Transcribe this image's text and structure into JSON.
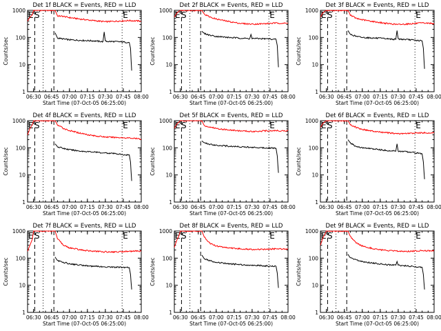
{
  "colors": {
    "events": "#000000",
    "lld": "#ff0000",
    "background": "#ffffff",
    "axes": "#000000"
  },
  "common": {
    "xlabel": "Start Time (07-Oct-05 06:25:00)",
    "ylabel": "Counts/sec",
    "x_tick_labels": [
      "06:30",
      "06:45",
      "07:00",
      "07:15",
      "07:30",
      "07:45",
      "08:00"
    ],
    "y_tick_labels": [
      "1",
      "10",
      "100",
      "1000"
    ],
    "marker_labels": [
      "E",
      "S",
      "E"
    ]
  },
  "chart_data": [
    {
      "type": "line",
      "title": "Det 1f BLACK = Events, RED = LLD",
      "xlabel": "Start Time (07-Oct-05 06:25:00)",
      "ylabel": "Counts/sec",
      "xlim": [
        "06:25",
        "08:00"
      ],
      "ylim": [
        1,
        1000
      ],
      "y_scale": "log",
      "x_ticks": [
        "06:30",
        "06:45",
        "07:00",
        "07:15",
        "07:30",
        "07:45",
        "08:00"
      ],
      "y_ticks": [
        "1",
        "10",
        "100",
        "1000"
      ],
      "vlines": {
        "dashed": [
          "06:31",
          "06:47"
        ],
        "dotted": [
          "06:38",
          "07:44"
        ]
      },
      "series": [
        {
          "color": "#ff0000",
          "x": [
            "06:25",
            "06:27",
            "06:29",
            "06:30",
            "06:31",
            "06:48",
            "06:50",
            "06:55",
            "07:00",
            "07:10",
            "07:20",
            "07:30",
            "07:40",
            "07:50",
            "08:00"
          ],
          "y": [
            400,
            560,
            680,
            1000,
            1000,
            1000,
            620,
            600,
            540,
            470,
            420,
            380,
            400,
            420,
            400
          ]
        },
        {
          "color": "#000000",
          "x": [
            "06:48",
            "06:50",
            "06:55",
            "07:00",
            "07:10",
            "07:20",
            "07:28",
            "07:29",
            "07:30",
            "07:40",
            "07:45",
            "07:50",
            "07:51",
            "07:52"
          ],
          "y": [
            150,
            95,
            88,
            82,
            78,
            75,
            70,
            160,
            72,
            70,
            68,
            65,
            40,
            6
          ]
        }
      ]
    },
    {
      "type": "line",
      "title": "Det 2f BLACK = Events, RED = LLD",
      "xlabel": "Start Time (07-Oct-05 06:25:00)",
      "ylabel": "Counts/sec",
      "xlim": [
        "06:25",
        "08:00"
      ],
      "ylim": [
        1,
        1000
      ],
      "y_scale": "log",
      "x_ticks": [
        "06:30",
        "06:45",
        "07:00",
        "07:15",
        "07:30",
        "07:45",
        "08:00"
      ],
      "y_ticks": [
        "1",
        "10",
        "100",
        "1000"
      ],
      "vlines": {
        "dashed": [
          "06:31",
          "06:47"
        ],
        "dotted": [
          "06:38",
          "07:44"
        ]
      },
      "series": [
        {
          "color": "#ff0000",
          "x": [
            "06:25",
            "06:27",
            "06:29",
            "06:30",
            "06:31",
            "06:48",
            "06:50",
            "06:55",
            "07:00",
            "07:10",
            "07:20",
            "07:30",
            "07:40",
            "07:50",
            "08:00"
          ],
          "y": [
            560,
            780,
            940,
            1000,
            1000,
            1000,
            720,
            560,
            480,
            390,
            330,
            310,
            320,
            340,
            330
          ]
        },
        {
          "color": "#000000",
          "x": [
            "06:48",
            "06:50",
            "06:55",
            "07:00",
            "07:10",
            "07:20",
            "07:28",
            "07:29",
            "07:30",
            "07:40",
            "07:45",
            "07:50",
            "07:51",
            "07:52"
          ],
          "y": [
            170,
            140,
            120,
            110,
            100,
            95,
            90,
            130,
            92,
            90,
            88,
            85,
            50,
            8
          ]
        }
      ]
    },
    {
      "type": "line",
      "title": "Det 3f BLACK = Events, RED = LLD",
      "xlabel": "Start Time (07-Oct-05 06:25:00)",
      "ylabel": "Counts/sec",
      "xlim": [
        "06:25",
        "08:00"
      ],
      "ylim": [
        1,
        1000
      ],
      "y_scale": "log",
      "x_ticks": [
        "06:30",
        "06:45",
        "07:00",
        "07:15",
        "07:30",
        "07:45",
        "08:00"
      ],
      "y_ticks": [
        "1",
        "10",
        "100",
        "1000"
      ],
      "vlines": {
        "dashed": [
          "06:31",
          "06:47"
        ],
        "dotted": [
          "06:38",
          "07:44"
        ]
      },
      "series": [
        {
          "color": "#ff0000",
          "x": [
            "06:25",
            "06:27",
            "06:29",
            "06:30",
            "06:31",
            "06:48",
            "06:50",
            "06:55",
            "07:00",
            "07:10",
            "07:20",
            "07:30",
            "07:40",
            "07:50",
            "08:00"
          ],
          "y": [
            560,
            800,
            950,
            1000,
            1000,
            1000,
            680,
            500,
            450,
            380,
            330,
            300,
            320,
            340,
            330
          ]
        },
        {
          "color": "#000000",
          "x": [
            "06:48",
            "06:50",
            "06:55",
            "07:00",
            "07:10",
            "07:20",
            "07:28",
            "07:29",
            "07:30",
            "07:40",
            "07:45",
            "07:50",
            "07:51",
            "07:52"
          ],
          "y": [
            180,
            130,
            110,
            100,
            95,
            90,
            85,
            180,
            88,
            82,
            78,
            75,
            40,
            7
          ]
        }
      ]
    },
    {
      "type": "line",
      "title": "Det 4f BLACK = Events, RED = LLD",
      "xlabel": "Start Time (07-Oct-05 06:25:00)",
      "ylabel": "Counts/sec",
      "xlim": [
        "06:25",
        "08:00"
      ],
      "ylim": [
        1,
        1000
      ],
      "y_scale": "log",
      "x_ticks": [
        "06:30",
        "06:45",
        "07:00",
        "07:15",
        "07:30",
        "07:45",
        "08:00"
      ],
      "y_ticks": [
        "1",
        "10",
        "100",
        "1000"
      ],
      "vlines": {
        "dashed": [
          "06:31",
          "06:47"
        ],
        "dotted": [
          "06:38",
          "07:44"
        ]
      },
      "series": [
        {
          "color": "#ff0000",
          "x": [
            "06:25",
            "06:27",
            "06:29",
            "06:30",
            "06:31",
            "06:48",
            "06:50",
            "06:55",
            "07:00",
            "07:10",
            "07:20",
            "07:30",
            "07:40",
            "07:50",
            "08:00"
          ],
          "y": [
            300,
            520,
            700,
            1000,
            1000,
            1000,
            700,
            520,
            430,
            340,
            280,
            250,
            240,
            230,
            210
          ]
        },
        {
          "color": "#000000",
          "x": [
            "06:48",
            "06:50",
            "06:55",
            "07:00",
            "07:10",
            "07:20",
            "07:28",
            "07:29",
            "07:30",
            "07:40",
            "07:45",
            "07:50",
            "07:51",
            "07:52"
          ],
          "y": [
            140,
            110,
            95,
            85,
            75,
            70,
            65,
            65,
            65,
            60,
            55,
            55,
            30,
            6
          ]
        }
      ]
    },
    {
      "type": "line",
      "title": "Det 5f BLACK = Events, RED = LLD",
      "xlabel": "Start Time (07-Oct-05 06:25:00)",
      "ylabel": "Counts/sec",
      "xlim": [
        "06:25",
        "08:00"
      ],
      "ylim": [
        1,
        1000
      ],
      "y_scale": "log",
      "x_ticks": [
        "06:30",
        "06:45",
        "07:00",
        "07:15",
        "07:30",
        "07:45",
        "08:00"
      ],
      "y_ticks": [
        "1",
        "10",
        "100",
        "1000"
      ],
      "vlines": {
        "dashed": [
          "06:31",
          "06:47"
        ],
        "dotted": [
          "06:38",
          "07:44"
        ]
      },
      "series": [
        {
          "color": "#ff0000",
          "x": [
            "06:25",
            "06:27",
            "06:29",
            "06:30",
            "06:31",
            "06:48",
            "06:50",
            "06:55",
            "07:00",
            "07:10",
            "07:20",
            "07:30",
            "07:40",
            "07:50",
            "08:00"
          ],
          "y": [
            520,
            740,
            900,
            1000,
            1000,
            1000,
            650,
            580,
            520,
            460,
            420,
            400,
            420,
            430,
            420
          ]
        },
        {
          "color": "#000000",
          "x": [
            "06:48",
            "06:50",
            "06:55",
            "07:00",
            "07:10",
            "07:20",
            "07:28",
            "07:29",
            "07:30",
            "07:40",
            "07:45",
            "07:50",
            "07:51",
            "07:52"
          ],
          "y": [
            180,
            150,
            135,
            125,
            115,
            110,
            105,
            105,
            105,
            100,
            100,
            95,
            50,
            12
          ]
        }
      ]
    },
    {
      "type": "line",
      "title": "Det 6f BLACK = Events, RED = LLD",
      "xlabel": "Start Time (07-Oct-05 06:25:00)",
      "ylabel": "Counts/sec",
      "xlim": [
        "06:25",
        "08:00"
      ],
      "ylim": [
        1,
        1000
      ],
      "y_scale": "log",
      "x_ticks": [
        "06:30",
        "06:45",
        "07:00",
        "07:15",
        "07:30",
        "07:45",
        "08:00"
      ],
      "y_ticks": [
        "1",
        "10",
        "100",
        "1000"
      ],
      "vlines": {
        "dashed": [
          "06:31",
          "06:47"
        ],
        "dotted": [
          "06:38",
          "07:44"
        ]
      },
      "series": [
        {
          "color": "#ff0000",
          "x": [
            "06:25",
            "06:27",
            "06:29",
            "06:30",
            "06:31",
            "06:48",
            "06:50",
            "06:55",
            "07:00",
            "07:10",
            "07:20",
            "07:30",
            "07:40",
            "07:50",
            "08:00"
          ],
          "y": [
            560,
            780,
            940,
            1000,
            1000,
            1000,
            720,
            560,
            480,
            400,
            360,
            330,
            340,
            360,
            350
          ]
        },
        {
          "color": "#000000",
          "x": [
            "06:48",
            "06:50",
            "06:55",
            "07:00",
            "07:10",
            "07:20",
            "07:28",
            "07:29",
            "07:30",
            "07:40",
            "07:45",
            "07:50",
            "07:51",
            "07:52"
          ],
          "y": [
            200,
            150,
            110,
            100,
            90,
            80,
            75,
            140,
            75,
            70,
            65,
            60,
            30,
            7
          ]
        }
      ]
    },
    {
      "type": "line",
      "title": "Det 7f BLACK = Events, RED = LLD",
      "xlabel": "Start Time (07-Oct-05 06:25:00)",
      "ylabel": "Counts/sec",
      "xlim": [
        "06:25",
        "08:00"
      ],
      "ylim": [
        1,
        1000
      ],
      "y_scale": "log",
      "x_ticks": [
        "06:30",
        "06:45",
        "07:00",
        "07:15",
        "07:30",
        "07:45",
        "08:00"
      ],
      "y_ticks": [
        "1",
        "10",
        "100",
        "1000"
      ],
      "vlines": {
        "dashed": [
          "06:31",
          "06:47"
        ],
        "dotted": [
          "06:38",
          "07:44"
        ]
      },
      "series": [
        {
          "color": "#ff0000",
          "x": [
            "06:25",
            "06:27",
            "06:29",
            "06:30",
            "06:31",
            "06:48",
            "06:50",
            "06:55",
            "07:00",
            "07:10",
            "07:20",
            "07:30",
            "07:40",
            "07:50",
            "08:00"
          ],
          "y": [
            180,
            300,
            500,
            1000,
            1000,
            1000,
            520,
            300,
            240,
            200,
            180,
            170,
            170,
            180,
            180
          ]
        },
        {
          "color": "#000000",
          "x": [
            "06:48",
            "06:50",
            "06:55",
            "07:00",
            "07:10",
            "07:20",
            "07:28",
            "07:29",
            "07:30",
            "07:40",
            "07:45",
            "07:50",
            "07:51",
            "07:52"
          ],
          "y": [
            110,
            80,
            70,
            62,
            55,
            50,
            48,
            48,
            48,
            46,
            45,
            45,
            25,
            7
          ]
        }
      ]
    },
    {
      "type": "line",
      "title": "Det 8f BLACK = Events, RED = LLD",
      "xlabel": "Start Time (07-Oct-05 06:25:00)",
      "ylabel": "Counts/sec",
      "xlim": [
        "06:25",
        "08:00"
      ],
      "ylim": [
        1,
        1000
      ],
      "y_scale": "log",
      "x_ticks": [
        "06:30",
        "06:45",
        "07:00",
        "07:15",
        "07:30",
        "07:45",
        "08:00"
      ],
      "y_ticks": [
        "1",
        "10",
        "100",
        "1000"
      ],
      "vlines": {
        "dashed": [
          "06:31",
          "06:47"
        ],
        "dotted": [
          "06:38",
          "07:44"
        ]
      },
      "series": [
        {
          "color": "#ff0000",
          "x": [
            "06:25",
            "06:27",
            "06:29",
            "06:30",
            "06:31",
            "06:48",
            "06:50",
            "06:55",
            "07:00",
            "07:10",
            "07:20",
            "07:30",
            "07:40",
            "07:50",
            "08:00"
          ],
          "y": [
            250,
            450,
            700,
            1000,
            1000,
            1000,
            600,
            350,
            280,
            240,
            220,
            210,
            210,
            220,
            220
          ]
        },
        {
          "color": "#000000",
          "x": [
            "06:48",
            "06:50",
            "06:55",
            "07:00",
            "07:10",
            "07:20",
            "07:28",
            "07:29",
            "07:30",
            "07:40",
            "07:45",
            "07:50",
            "07:51",
            "07:52"
          ],
          "y": [
            130,
            95,
            80,
            70,
            62,
            58,
            55,
            55,
            55,
            52,
            50,
            50,
            28,
            8
          ]
        }
      ]
    },
    {
      "type": "line",
      "title": "Det 9f BLACK = Events, RED = LLD",
      "xlabel": "Start Time (07-Oct-05 06:25:00)",
      "ylabel": "Counts/sec",
      "xlim": [
        "06:25",
        "08:00"
      ],
      "ylim": [
        1,
        1000
      ],
      "y_scale": "log",
      "x_ticks": [
        "06:30",
        "06:45",
        "07:00",
        "07:15",
        "07:30",
        "07:45",
        "08:00"
      ],
      "y_ticks": [
        "1",
        "10",
        "100",
        "1000"
      ],
      "vlines": {
        "dashed": [
          "06:31",
          "06:47"
        ],
        "dotted": [
          "06:38",
          "07:44"
        ]
      },
      "series": [
        {
          "color": "#ff0000",
          "x": [
            "06:25",
            "06:27",
            "06:29",
            "06:30",
            "06:31",
            "06:48",
            "06:50",
            "06:55",
            "07:00",
            "07:10",
            "07:20",
            "07:30",
            "07:40",
            "07:50",
            "08:00"
          ],
          "y": [
            300,
            550,
            800,
            1000,
            1000,
            1000,
            620,
            360,
            280,
            220,
            190,
            180,
            180,
            190,
            185
          ]
        },
        {
          "color": "#000000",
          "x": [
            "06:48",
            "06:50",
            "06:55",
            "07:00",
            "07:10",
            "07:20",
            "07:28",
            "07:29",
            "07:30",
            "07:40",
            "07:45",
            "07:50",
            "07:51",
            "07:52"
          ],
          "y": [
            140,
            100,
            85,
            75,
            65,
            58,
            55,
            75,
            55,
            50,
            48,
            46,
            25,
            7
          ]
        }
      ]
    }
  ]
}
